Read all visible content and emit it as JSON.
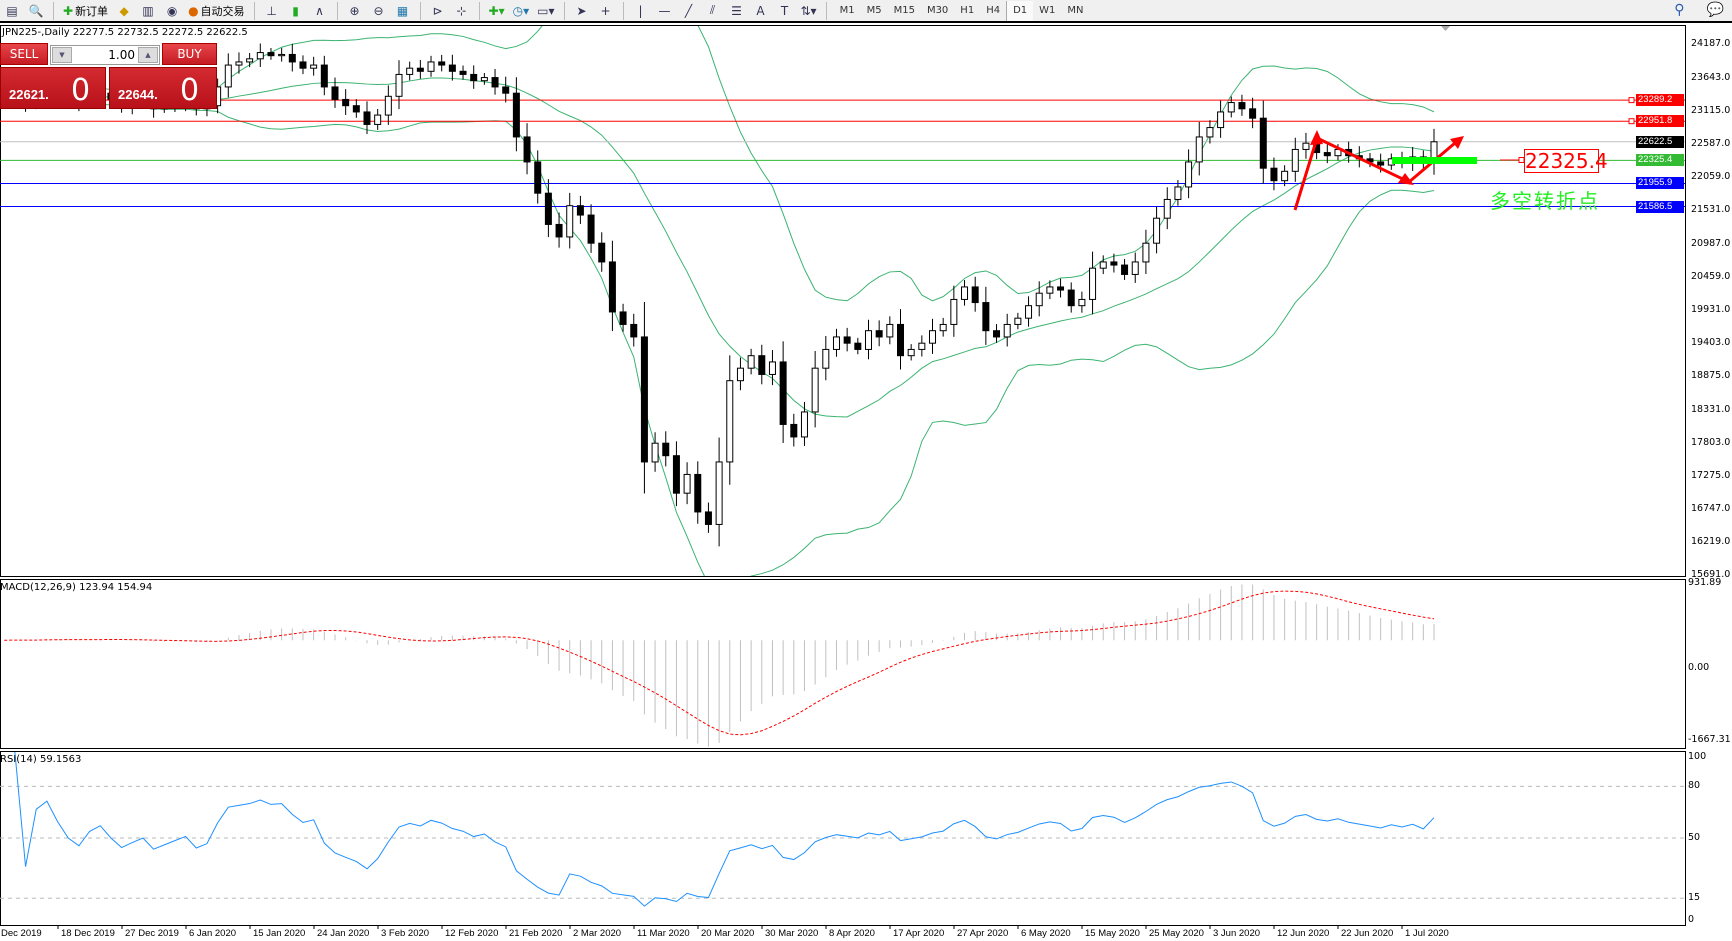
{
  "toolbar": {
    "new_order": "新订单",
    "auto_trading": "自动交易",
    "timeframes": [
      "M1",
      "M5",
      "M15",
      "M30",
      "H1",
      "H4",
      "D1",
      "W1",
      "MN"
    ],
    "active_timeframe": "D1"
  },
  "header": {
    "text": "JPN225-,Daily  22277.5 22732.5 22272.5 22622.5"
  },
  "trade_panel": {
    "sell": "SELL",
    "buy": "BUY",
    "lot": "1.00",
    "sell_price_main": "22621.",
    "sell_price_big": "0",
    "buy_price_main": "22644.",
    "buy_price_big": "0"
  },
  "annotations": {
    "box_value": "22325.4",
    "note": "多空转折点",
    "arrow_color": "#ff0000",
    "bar_color": "#00ff00"
  },
  "macd": {
    "label": "MACD(12,26,9) 123.94 154.94",
    "axis": [
      "931.89",
      "0.00",
      "-1667.31"
    ],
    "fast": 12,
    "slow": 26,
    "signal": 9,
    "range": [
      -1667.31,
      931.89
    ]
  },
  "rsi": {
    "label": "RSI(14) 59.1563",
    "axis": [
      "100",
      "80",
      "50",
      "15",
      "0"
    ],
    "period": 14,
    "levels": [
      80,
      50,
      15
    ],
    "color": "#1e90ff"
  },
  "chart_data": {
    "type": "candlestick",
    "symbol": "JPN225-",
    "timeframe": "Daily",
    "price_axis": [
      "24187.0",
      "23643.0",
      "23115.0",
      "22587.0",
      "22059.0",
      "21531.0",
      "20987.0",
      "20459.0",
      "19931.0",
      "19403.0",
      "18875.0",
      "18331.0",
      "17803.0",
      "17275.0",
      "16747.0",
      "16219.0",
      "15691.0"
    ],
    "ylim": [
      15691,
      24187
    ],
    "bollinger": {
      "period": 20,
      "deviation": 2,
      "color": "#3cb371"
    },
    "lines": [
      {
        "price": "23289.2",
        "color": "#ff0000"
      },
      {
        "price": "22951.8",
        "color": "#ff0000"
      },
      {
        "price": "22622.5",
        "color": "#c0c0c0",
        "tag_color": "#000000"
      },
      {
        "price": "22325.4",
        "color": "#33bb33",
        "tag_color": "#33bb33"
      },
      {
        "price": "21955.9",
        "color": "#0000ff"
      },
      {
        "price": "21586.5",
        "color": "#0000ff"
      }
    ],
    "date_labels": [
      "Dec 2019",
      "18 Dec 2019",
      "27 Dec 2019",
      "6 Jan 2020",
      "15 Jan 2020",
      "24 Jan 2020",
      "3 Feb 2020",
      "12 Feb 2020",
      "21 Feb 2020",
      "2 Mar 2020",
      "11 Mar 2020",
      "20 Mar 2020",
      "30 Mar 2020",
      "8 Apr 2020",
      "17 Apr 2020",
      "27 Apr 2020",
      "6 May 2020",
      "15 May 2020",
      "25 May 2020",
      "3 Jun 2020",
      "12 Jun 2020",
      "22 Jun 2020",
      "1 Jul 2020"
    ],
    "close": [
      23300,
      23350,
      23250,
      23400,
      23450,
      23380,
      23300,
      23250,
      23350,
      23400,
      23300,
      23200,
      23250,
      23300,
      23150,
      23200,
      23250,
      23300,
      23150,
      23200,
      23500,
      23850,
      23900,
      23950,
      24050,
      24000,
      24020,
      23900,
      23800,
      23850,
      23500,
      23300,
      23200,
      23100,
      22900,
      23050,
      23350,
      23700,
      23800,
      23750,
      23900,
      23850,
      23750,
      23700,
      23600,
      23650,
      23500,
      23400,
      22700,
      22300,
      21800,
      21300,
      21100,
      21600,
      21450,
      21000,
      20700,
      19900,
      19700,
      19500,
      17500,
      17800,
      17600,
      17000,
      17300,
      16700,
      16500,
      17500,
      18800,
      19000,
      19200,
      18900,
      19100,
      18100,
      17900,
      18300,
      19000,
      19300,
      19500,
      19400,
      19300,
      19600,
      19500,
      19700,
      19200,
      19300,
      19400,
      19600,
      19700,
      20100,
      20300,
      20050,
      19600,
      19500,
      19700,
      19800,
      20000,
      20200,
      20300,
      20250,
      20000,
      20100,
      20600,
      20700,
      20650,
      20500,
      20700,
      21000,
      21400,
      21700,
      21900,
      22300,
      22700,
      22850,
      23100,
      23250,
      23150,
      23000,
      22200,
      22000,
      22150,
      22500,
      22600,
      22450,
      22400,
      22500,
      22400,
      22350,
      22300,
      22250,
      22350,
      22300,
      22380,
      22280,
      22622.5
    ]
  }
}
